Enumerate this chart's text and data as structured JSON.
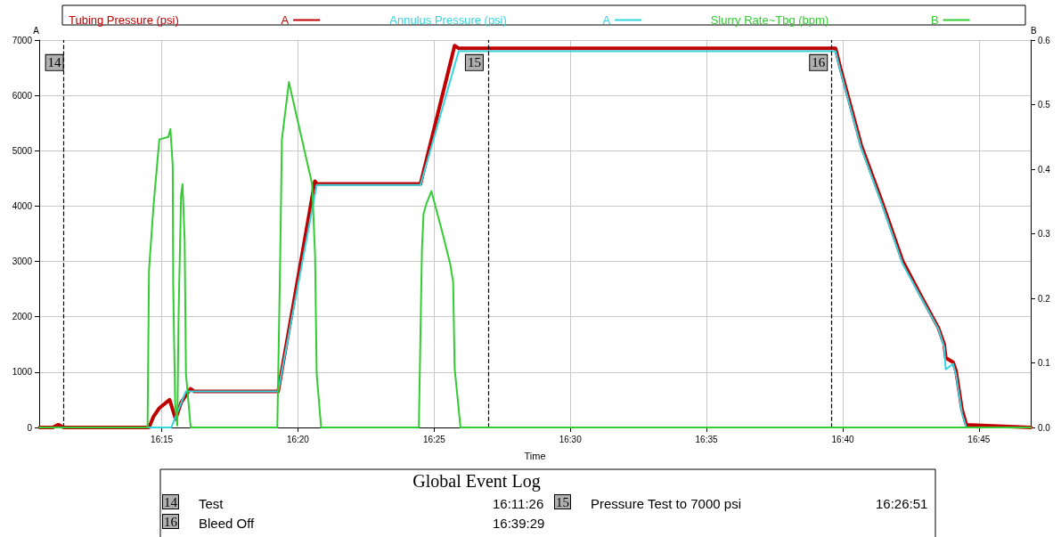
{
  "chart_data": {
    "type": "line",
    "xlabel": "Time",
    "ylabel": "A",
    "y2label": "B",
    "xlim": [
      16.175,
      16.7817
    ],
    "xticks": [
      {
        "value": 16.25,
        "label": "16:15"
      },
      {
        "value": 16.3333,
        "label": "16:20"
      },
      {
        "value": 16.4167,
        "label": "16:25"
      },
      {
        "value": 16.5,
        "label": "16:30"
      },
      {
        "value": 16.5833,
        "label": "16:35"
      },
      {
        "value": 16.6667,
        "label": "16:40"
      },
      {
        "value": 16.75,
        "label": "16:45"
      }
    ],
    "ylim": [
      0,
      7000
    ],
    "yticks": [
      0,
      1000,
      2000,
      3000,
      4000,
      5000,
      6000,
      7000
    ],
    "y2lim": [
      0,
      0.6
    ],
    "y2ticks": [
      {
        "value": 0,
        "label": "0.0"
      },
      {
        "value": 0.1,
        "label": "0.1"
      },
      {
        "value": 0.2,
        "label": "0.2"
      },
      {
        "value": 0.3,
        "label": "0.3"
      },
      {
        "value": 0.4,
        "label": "0.4"
      },
      {
        "value": 0.5,
        "label": "0.5"
      },
      {
        "value": 0.6,
        "label": "0.6"
      }
    ],
    "grid": true,
    "legend": "top",
    "marker": "none",
    "line_style": "solid",
    "series": [
      {
        "name": "Tubing Pressure (psi)",
        "color": "#c00000",
        "axis": "y",
        "x": [
          16.1753,
          16.1833,
          16.1867,
          16.19,
          16.2422,
          16.245,
          16.2485,
          16.2548,
          16.2585,
          16.2618,
          16.2675,
          16.27,
          16.3212,
          16.3437,
          16.345,
          16.4083,
          16.4292,
          16.4317,
          16.6623,
          16.6652,
          16.678,
          16.6907,
          16.7033,
          16.7142,
          16.7252,
          16.7288,
          16.7297,
          16.7342,
          16.736,
          16.7397,
          16.7423,
          16.7817
        ],
        "values": [
          0,
          0,
          50,
          0,
          0,
          200,
          350,
          500,
          150,
          450,
          700,
          650,
          650,
          4450,
          4400,
          4400,
          6900,
          6850,
          6850,
          6500,
          5100,
          4080,
          3010,
          2400,
          1800,
          1500,
          1260,
          1180,
          1020,
          320,
          50,
          0
        ]
      },
      {
        "name": "Annulus Pressure (psi)",
        "color": "#33d6e0",
        "axis": "y",
        "x": [
          16.1753,
          16.2558,
          16.2647,
          16.3212,
          16.3448,
          16.4083,
          16.4317,
          16.6623,
          16.6652,
          16.678,
          16.6907,
          16.7033,
          16.7142,
          16.7252,
          16.7288,
          16.7297,
          16.7342,
          16.736,
          16.7397,
          16.7423,
          16.7817
        ],
        "values": [
          0,
          0,
          650,
          650,
          4380,
          4380,
          6800,
          6800,
          6450,
          5050,
          4030,
          2960,
          2370,
          1780,
          1450,
          1050,
          1150,
          950,
          250,
          0,
          0
        ]
      },
      {
        "name": "Slurry Rate~Tbg (bpm)",
        "color": "#33cc33",
        "axis": "y2",
        "x": [
          16.1753,
          16.2413,
          16.2422,
          16.245,
          16.2485,
          16.254,
          16.2553,
          16.2567,
          16.257,
          16.2582,
          16.2595,
          16.2603,
          16.2618,
          16.2627,
          16.264,
          16.2648,
          16.2677,
          16.3207,
          16.3225,
          16.3235,
          16.3278,
          16.3312,
          16.342,
          16.3438,
          16.3448,
          16.3475,
          16.4073,
          16.4092,
          16.4102,
          16.412,
          16.415,
          16.422,
          16.4265,
          16.4283,
          16.4292,
          16.4328,
          16.7817
        ],
        "values": [
          0,
          0,
          0.244,
          0.345,
          0.446,
          0.45,
          0.462,
          0.405,
          0.22,
          0.037,
          0.003,
          0.175,
          0.359,
          0.377,
          0.29,
          0.083,
          0,
          0,
          0.267,
          0.446,
          0.535,
          0.497,
          0.377,
          0.267,
          0.083,
          0,
          0,
          0.276,
          0.331,
          0.347,
          0.366,
          0.299,
          0.253,
          0.225,
          0.092,
          0,
          0
        ]
      }
    ],
    "ref_lines": [
      {
        "axis": "x",
        "value": 16.1906,
        "line_style": "dashed",
        "color": "#000000"
      },
      {
        "axis": "x",
        "value": 16.4475,
        "line_style": "dashed",
        "color": "#000000"
      },
      {
        "axis": "x",
        "value": 16.6581,
        "line_style": "dashed",
        "color": "#000000"
      }
    ],
    "annotations": [
      {
        "text": "14",
        "x": 16.1906,
        "y": 6600
      },
      {
        "text": "15",
        "x": 16.4475,
        "y": 6600
      },
      {
        "text": "16",
        "x": 16.6581,
        "y": 6600
      },
      "Global Event Log",
      "Test",
      "16:11:26",
      "Pressure Test to 7000 psi",
      "16:26:51",
      "Bleed Off",
      "16:39:29"
    ]
  }
}
